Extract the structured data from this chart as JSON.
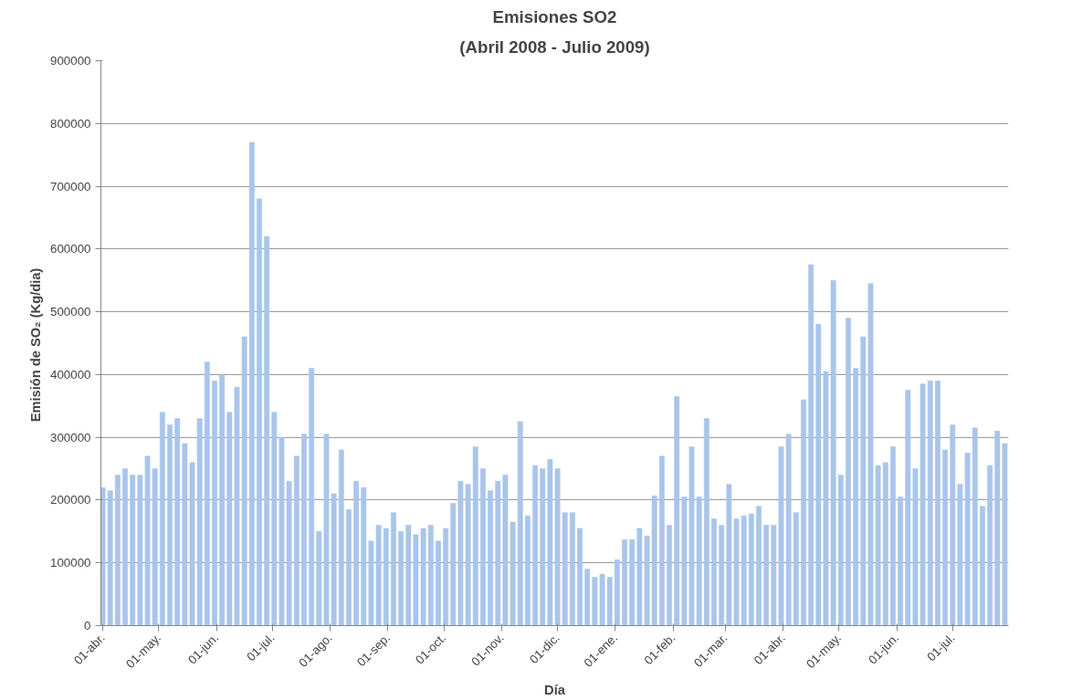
{
  "chart_data": {
    "type": "bar",
    "title": "Emisiones SO2",
    "subtitle": "(Abril 2008 - Julio 2009)",
    "xlabel": "Día",
    "ylabel": "Emisión de SO₂  (Kg/dia)",
    "x": [
      "2008-04-01",
      "2008-04-05",
      "2008-04-09",
      "2008-04-13",
      "2008-04-17",
      "2008-04-21",
      "2008-04-25",
      "2008-04-29",
      "2008-05-03",
      "2008-05-07",
      "2008-05-11",
      "2008-05-15",
      "2008-05-19",
      "2008-05-23",
      "2008-05-27",
      "2008-05-31",
      "2008-06-04",
      "2008-06-08",
      "2008-06-12",
      "2008-06-16",
      "2008-06-20",
      "2008-06-24",
      "2008-06-28",
      "2008-07-02",
      "2008-07-06",
      "2008-07-10",
      "2008-07-14",
      "2008-07-18",
      "2008-07-22",
      "2008-07-26",
      "2008-07-30",
      "2008-08-03",
      "2008-08-07",
      "2008-08-11",
      "2008-08-15",
      "2008-08-19",
      "2008-08-23",
      "2008-08-27",
      "2008-08-31",
      "2008-09-04",
      "2008-09-08",
      "2008-09-12",
      "2008-09-16",
      "2008-09-20",
      "2008-09-24",
      "2008-09-28",
      "2008-10-02",
      "2008-10-06",
      "2008-10-10",
      "2008-10-14",
      "2008-10-18",
      "2008-10-22",
      "2008-10-26",
      "2008-10-30",
      "2008-11-03",
      "2008-11-07",
      "2008-11-11",
      "2008-11-15",
      "2008-11-19",
      "2008-11-23",
      "2008-11-27",
      "2008-12-01",
      "2008-12-05",
      "2008-12-09",
      "2008-12-13",
      "2008-12-17",
      "2008-12-21",
      "2008-12-25",
      "2008-12-29",
      "2009-01-02",
      "2009-01-06",
      "2009-01-10",
      "2009-01-14",
      "2009-01-18",
      "2009-01-22",
      "2009-01-26",
      "2009-01-30",
      "2009-02-03",
      "2009-02-07",
      "2009-02-11",
      "2009-02-15",
      "2009-02-19",
      "2009-02-23",
      "2009-02-27",
      "2009-03-03",
      "2009-03-07",
      "2009-03-11",
      "2009-03-15",
      "2009-03-19",
      "2009-03-23",
      "2009-03-27",
      "2009-03-31",
      "2009-04-04",
      "2009-04-08",
      "2009-04-12",
      "2009-04-16",
      "2009-04-20",
      "2009-04-24",
      "2009-04-28",
      "2009-05-02",
      "2009-05-06",
      "2009-05-10",
      "2009-05-14",
      "2009-05-18",
      "2009-05-22",
      "2009-05-26",
      "2009-05-30",
      "2009-06-03",
      "2009-06-07",
      "2009-06-11",
      "2009-06-15",
      "2009-06-19",
      "2009-06-23",
      "2009-06-27",
      "2009-07-01",
      "2009-07-05",
      "2009-07-09",
      "2009-07-13",
      "2009-07-17",
      "2009-07-21",
      "2009-07-25",
      "2009-07-29"
    ],
    "values": [
      220000,
      215000,
      240000,
      250000,
      240000,
      240000,
      270000,
      250000,
      340000,
      320000,
      330000,
      290000,
      260000,
      330000,
      420000,
      390000,
      400000,
      340000,
      380000,
      460000,
      770000,
      680000,
      620000,
      340000,
      300000,
      230000,
      270000,
      305000,
      410000,
      150000,
      305000,
      210000,
      280000,
      185000,
      230000,
      220000,
      135000,
      160000,
      155000,
      180000,
      150000,
      160000,
      145000,
      155000,
      160000,
      135000,
      155000,
      195000,
      230000,
      225000,
      285000,
      250000,
      215000,
      230000,
      240000,
      165000,
      325000,
      175000,
      255000,
      250000,
      265000,
      250000,
      180000,
      180000,
      155000,
      90000,
      77000,
      82000,
      77000,
      105000,
      137000,
      137000,
      155000,
      143000,
      207000,
      270000,
      160000,
      365000,
      205000,
      285000,
      205000,
      330000,
      170000,
      160000,
      225000,
      170000,
      175000,
      178000,
      190000,
      160000,
      160000,
      285000,
      305000,
      180000,
      360000,
      575000,
      480000,
      405000,
      550000,
      240000,
      490000,
      410000,
      460000,
      545000,
      255000,
      260000,
      285000,
      205000,
      375000,
      250000,
      385000,
      390000,
      390000,
      280000,
      320000,
      225000,
      275000,
      315000,
      190000,
      255000,
      310000,
      290000
    ],
    "color": "#a9c5ea",
    "xlim": [
      "2008-03-31",
      "2009-07-31"
    ],
    "xticks": [
      {
        "value": "2008-04-01",
        "label": "01-abr."
      },
      {
        "value": "2008-05-01",
        "label": "01-may."
      },
      {
        "value": "2008-06-01",
        "label": "01-jun."
      },
      {
        "value": "2008-07-01",
        "label": "01-jul."
      },
      {
        "value": "2008-08-01",
        "label": "01-ago."
      },
      {
        "value": "2008-09-01",
        "label": "01-sep."
      },
      {
        "value": "2008-10-01",
        "label": "01-oct."
      },
      {
        "value": "2008-11-01",
        "label": "01-nov."
      },
      {
        "value": "2008-12-01",
        "label": "01-dic."
      },
      {
        "value": "2009-01-01",
        "label": "01-ene."
      },
      {
        "value": "2009-02-01",
        "label": "01-feb."
      },
      {
        "value": "2009-03-01",
        "label": "01-mar."
      },
      {
        "value": "2009-04-01",
        "label": "01-abr."
      },
      {
        "value": "2009-05-01",
        "label": "01-may."
      },
      {
        "value": "2009-06-01",
        "label": "01-jun."
      },
      {
        "value": "2009-07-01",
        "label": "01-jul."
      }
    ],
    "ylim": [
      0,
      900000
    ],
    "yticks": [
      0,
      100000,
      200000,
      300000,
      400000,
      500000,
      600000,
      700000,
      800000,
      900000
    ],
    "grid": "y"
  }
}
